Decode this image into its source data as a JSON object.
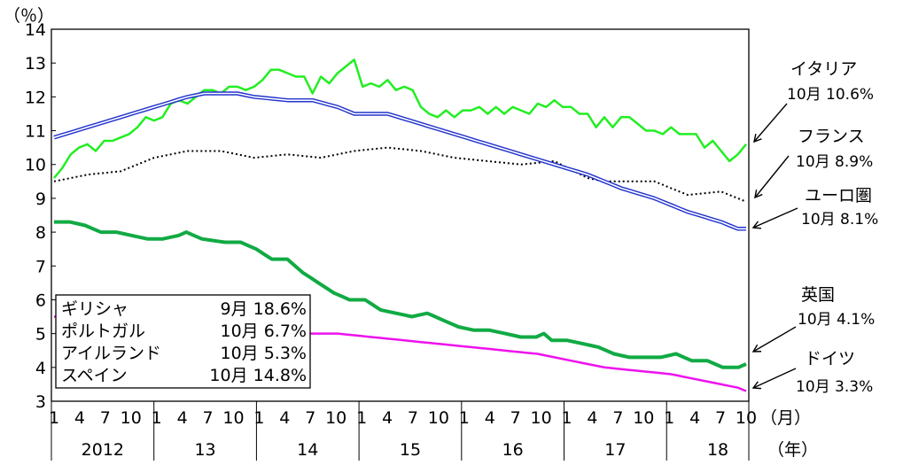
{
  "chart_data": {
    "type": "line",
    "y_unit_label": "（％）",
    "x_unit_month": "（月）",
    "x_unit_year": "（年）",
    "ylim": [
      3,
      14
    ],
    "yticks": [
      "3",
      "4",
      "5",
      "6",
      "7",
      "8",
      "9",
      "10",
      "11",
      "12",
      "13",
      "14"
    ],
    "month_ticks": [
      "1",
      "4",
      "7",
      "10"
    ],
    "years": [
      "2012",
      "13",
      "14",
      "15",
      "16",
      "17",
      "18"
    ],
    "x_start": "2012-01",
    "x_end": "2018-10",
    "series": [
      {
        "name": "イタリア",
        "color": "#22ee22",
        "style": "solid",
        "last_label": "10月 10.6%",
        "anchors": [
          [
            0,
            9.6
          ],
          [
            1,
            9.9
          ],
          [
            2,
            10.3
          ],
          [
            3,
            10.5
          ],
          [
            4,
            10.6
          ],
          [
            5,
            10.4
          ],
          [
            6,
            10.7
          ],
          [
            7,
            10.7
          ],
          [
            8,
            10.8
          ],
          [
            9,
            10.9
          ],
          [
            10,
            11.1
          ],
          [
            11,
            11.4
          ],
          [
            12,
            11.3
          ],
          [
            13,
            11.4
          ],
          [
            14,
            11.8
          ],
          [
            15,
            11.9
          ],
          [
            16,
            11.8
          ],
          [
            17,
            12.0
          ],
          [
            18,
            12.2
          ],
          [
            19,
            12.2
          ],
          [
            20,
            12.1
          ],
          [
            21,
            12.3
          ],
          [
            22,
            12.3
          ],
          [
            23,
            12.2
          ],
          [
            24,
            12.3
          ],
          [
            25,
            12.5
          ],
          [
            26,
            12.8
          ],
          [
            27,
            12.8
          ],
          [
            28,
            12.7
          ],
          [
            29,
            12.6
          ],
          [
            30,
            12.6
          ],
          [
            31,
            12.1
          ],
          [
            32,
            12.6
          ],
          [
            33,
            12.4
          ],
          [
            34,
            12.7
          ],
          [
            35,
            12.9
          ],
          [
            36,
            13.1
          ],
          [
            37,
            12.3
          ],
          [
            38,
            12.4
          ],
          [
            39,
            12.3
          ],
          [
            40,
            12.5
          ],
          [
            41,
            12.2
          ],
          [
            42,
            12.3
          ],
          [
            43,
            12.2
          ],
          [
            44,
            11.7
          ],
          [
            45,
            11.5
          ],
          [
            46,
            11.4
          ],
          [
            47,
            11.6
          ],
          [
            48,
            11.4
          ],
          [
            49,
            11.6
          ],
          [
            50,
            11.6
          ],
          [
            51,
            11.7
          ],
          [
            52,
            11.5
          ],
          [
            53,
            11.7
          ],
          [
            54,
            11.5
          ],
          [
            55,
            11.7
          ],
          [
            56,
            11.6
          ],
          [
            57,
            11.5
          ],
          [
            58,
            11.8
          ],
          [
            59,
            11.7
          ],
          [
            60,
            11.9
          ],
          [
            61,
            11.7
          ],
          [
            62,
            11.7
          ],
          [
            63,
            11.5
          ],
          [
            64,
            11.5
          ],
          [
            65,
            11.1
          ],
          [
            66,
            11.4
          ],
          [
            67,
            11.1
          ],
          [
            68,
            11.4
          ],
          [
            69,
            11.4
          ],
          [
            70,
            11.2
          ],
          [
            71,
            11.0
          ],
          [
            72,
            11.0
          ],
          [
            73,
            10.9
          ],
          [
            74,
            11.1
          ],
          [
            75,
            10.9
          ],
          [
            76,
            10.9
          ],
          [
            77,
            10.9
          ],
          [
            78,
            10.5
          ],
          [
            79,
            10.7
          ],
          [
            80,
            10.4
          ],
          [
            81,
            10.1
          ],
          [
            82,
            10.3
          ],
          [
            83,
            10.6
          ]
        ]
      },
      {
        "name": "フランス",
        "color": "#000000",
        "style": "dotted",
        "last_label": "10月 8.9%",
        "anchors": [
          [
            0,
            9.5
          ],
          [
            4,
            9.7
          ],
          [
            8,
            9.8
          ],
          [
            12,
            10.2
          ],
          [
            16,
            10.4
          ],
          [
            20,
            10.4
          ],
          [
            24,
            10.2
          ],
          [
            28,
            10.3
          ],
          [
            32,
            10.2
          ],
          [
            36,
            10.4
          ],
          [
            40,
            10.5
          ],
          [
            44,
            10.4
          ],
          [
            48,
            10.2
          ],
          [
            52,
            10.1
          ],
          [
            56,
            10.0
          ],
          [
            60,
            10.1
          ],
          [
            64,
            9.6
          ],
          [
            66,
            9.5
          ],
          [
            70,
            9.5
          ],
          [
            72,
            9.5
          ],
          [
            76,
            9.1
          ],
          [
            80,
            9.2
          ],
          [
            82,
            9.0
          ],
          [
            83,
            8.9
          ]
        ]
      },
      {
        "name": "ユーロ圏",
        "color": "#2233cc",
        "style": "double",
        "last_label": "10月 8.1%",
        "anchors": [
          [
            0,
            10.8
          ],
          [
            4,
            11.1
          ],
          [
            8,
            11.4
          ],
          [
            12,
            11.7
          ],
          [
            16,
            12.0
          ],
          [
            18,
            12.1
          ],
          [
            22,
            12.1
          ],
          [
            24,
            12.0
          ],
          [
            28,
            11.9
          ],
          [
            31,
            11.9
          ],
          [
            34,
            11.7
          ],
          [
            36,
            11.5
          ],
          [
            40,
            11.5
          ],
          [
            44,
            11.2
          ],
          [
            48,
            10.9
          ],
          [
            52,
            10.6
          ],
          [
            56,
            10.3
          ],
          [
            60,
            10.0
          ],
          [
            64,
            9.7
          ],
          [
            68,
            9.3
          ],
          [
            72,
            9.0
          ],
          [
            76,
            8.6
          ],
          [
            80,
            8.3
          ],
          [
            82,
            8.1
          ],
          [
            83,
            8.1
          ]
        ]
      },
      {
        "name": "英国",
        "color": "#11aa44",
        "style": "thick",
        "last_label": "10月 4.1%",
        "anchors": [
          [
            0,
            8.3
          ],
          [
            2,
            8.3
          ],
          [
            4,
            8.2
          ],
          [
            6,
            8.0
          ],
          [
            8,
            8.0
          ],
          [
            10,
            7.9
          ],
          [
            12,
            7.8
          ],
          [
            14,
            7.8
          ],
          [
            16,
            7.9
          ],
          [
            17,
            8.0
          ],
          [
            19,
            7.8
          ],
          [
            22,
            7.7
          ],
          [
            24,
            7.7
          ],
          [
            26,
            7.5
          ],
          [
            28,
            7.2
          ],
          [
            30,
            7.2
          ],
          [
            32,
            6.8
          ],
          [
            34,
            6.5
          ],
          [
            36,
            6.2
          ],
          [
            38,
            6.0
          ],
          [
            40,
            6.0
          ],
          [
            42,
            5.7
          ],
          [
            44,
            5.6
          ],
          [
            46,
            5.5
          ],
          [
            48,
            5.6
          ],
          [
            50,
            5.4
          ],
          [
            52,
            5.2
          ],
          [
            54,
            5.1
          ],
          [
            56,
            5.1
          ],
          [
            58,
            5.0
          ],
          [
            60,
            4.9
          ],
          [
            62,
            4.9
          ],
          [
            63,
            5.0
          ],
          [
            64,
            4.8
          ],
          [
            66,
            4.8
          ],
          [
            68,
            4.7
          ],
          [
            70,
            4.6
          ],
          [
            72,
            4.4
          ],
          [
            74,
            4.3
          ],
          [
            76,
            4.3
          ],
          [
            78,
            4.3
          ],
          [
            80,
            4.4
          ],
          [
            82,
            4.2
          ],
          [
            84,
            4.2
          ],
          [
            86,
            4.0
          ],
          [
            88,
            4.0
          ],
          [
            89,
            4.1
          ]
        ]
      },
      {
        "name": "ドイツ",
        "color": "#ee11ee",
        "style": "solid",
        "last_label": "10月 3.3%",
        "anchors": [
          [
            0,
            5.5
          ],
          [
            6,
            5.4
          ],
          [
            12,
            5.3
          ],
          [
            18,
            5.3
          ],
          [
            24,
            5.1
          ],
          [
            30,
            5.0
          ],
          [
            34,
            5.0
          ],
          [
            38,
            4.9
          ],
          [
            42,
            4.8
          ],
          [
            46,
            4.7
          ],
          [
            50,
            4.6
          ],
          [
            54,
            4.5
          ],
          [
            58,
            4.4
          ],
          [
            62,
            4.2
          ],
          [
            66,
            4.0
          ],
          [
            70,
            3.9
          ],
          [
            74,
            3.8
          ],
          [
            78,
            3.6
          ],
          [
            80,
            3.5
          ],
          [
            82,
            3.4
          ],
          [
            83,
            3.3
          ]
        ]
      }
    ],
    "legend_box": [
      {
        "name": "ギリシャ",
        "value": "9月 18.6%"
      },
      {
        "name": "ポルトガル",
        "value": "10月 6.7%"
      },
      {
        "name": "アイルランド",
        "value": "10月 5.3%"
      },
      {
        "name": "スペイン",
        "value": "10月 14.8%"
      }
    ]
  }
}
